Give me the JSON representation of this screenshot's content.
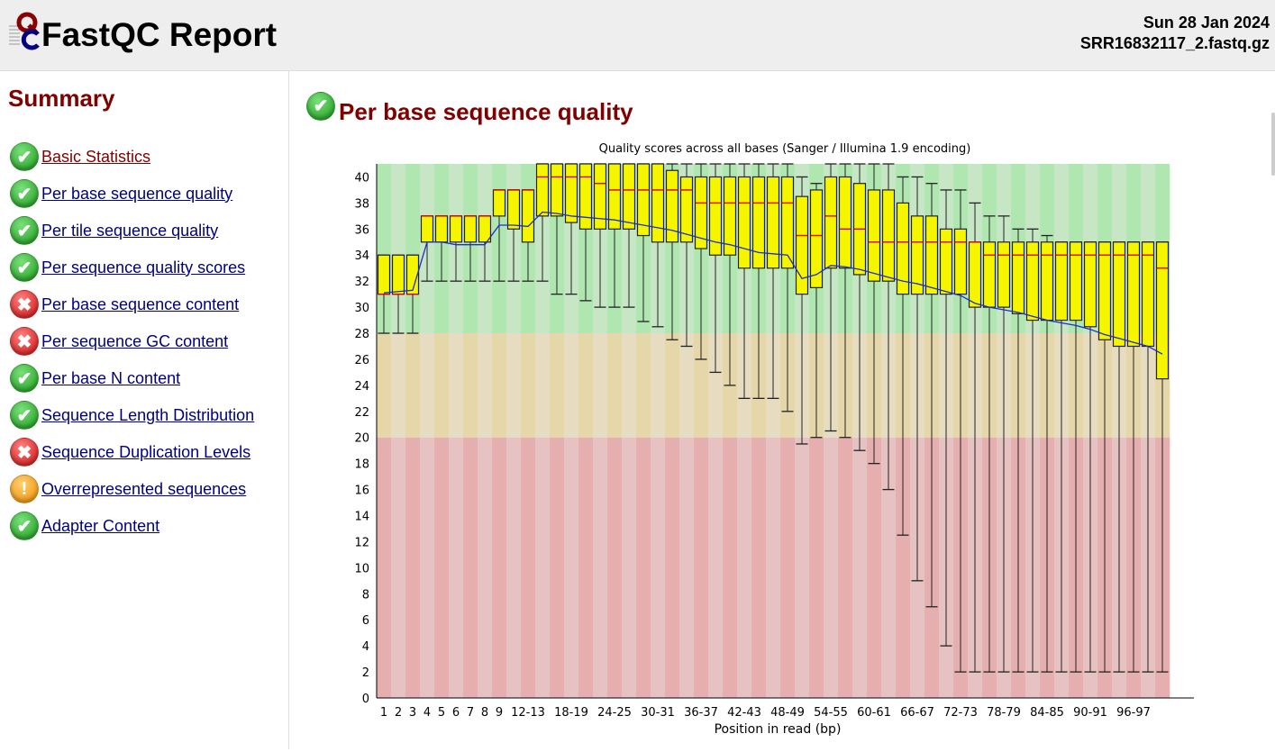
{
  "header": {
    "title": "FastQC Report",
    "date": "Sun 28 Jan 2024",
    "filename": "SRR16832117_2.fastq.gz",
    "logo_text": "QC"
  },
  "sidebar": {
    "title": "Summary",
    "items": [
      {
        "label": "Basic Statistics",
        "status": "pass",
        "visited": true
      },
      {
        "label": "Per base sequence quality",
        "status": "pass"
      },
      {
        "label": "Per tile sequence quality",
        "status": "pass"
      },
      {
        "label": "Per sequence quality scores",
        "status": "pass"
      },
      {
        "label": "Per base sequence content",
        "status": "fail"
      },
      {
        "label": "Per sequence GC content",
        "status": "fail"
      },
      {
        "label": "Per base N content",
        "status": "pass"
      },
      {
        "label": "Sequence Length Distribution",
        "status": "pass"
      },
      {
        "label": "Sequence Duplication Levels",
        "status": "fail"
      },
      {
        "label": "Overrepresented sequences",
        "status": "warn"
      },
      {
        "label": "Adapter Content",
        "status": "pass"
      }
    ]
  },
  "main": {
    "title": "Per base sequence quality",
    "status": "pass"
  },
  "colors": {
    "box": "#f5f500",
    "median": "#e00000",
    "mean": "#1e2cd6",
    "good": "#b0e6b0",
    "ok": "#e6d7a8",
    "poor": "#e6afaf"
  },
  "chart_data": {
    "type": "boxplot",
    "title": "Quality scores across all bases (Sanger / Illumina 1.9 encoding)",
    "xlabel": "Position in read (bp)",
    "ylabel": "",
    "ylim": [
      0,
      41
    ],
    "yticks": [
      0,
      2,
      4,
      6,
      8,
      10,
      12,
      14,
      16,
      18,
      20,
      22,
      24,
      26,
      28,
      30,
      32,
      34,
      36,
      38,
      40
    ],
    "zones": [
      {
        "from": 28,
        "to": 41,
        "label": "good"
      },
      {
        "from": 20,
        "to": 28,
        "label": "ok"
      },
      {
        "from": 0,
        "to": 20,
        "label": "poor"
      }
    ],
    "categories": [
      "1",
      "2",
      "3",
      "4",
      "5",
      "6",
      "7",
      "8",
      "9",
      "10-11",
      "12-13",
      "14-15",
      "16-17",
      "18-19",
      "20-21",
      "22-23",
      "24-25",
      "26-27",
      "28-29",
      "30-31",
      "32-33",
      "34-35",
      "36-37",
      "38-39",
      "40-41",
      "42-43",
      "44-45",
      "46-47",
      "48-49",
      "50-51",
      "52-53",
      "54-55",
      "56-57",
      "58-59",
      "60-61",
      "62-63",
      "64-65",
      "66-67",
      "68-69",
      "70-71",
      "72-73",
      "74-75",
      "76-77",
      "78-79",
      "80-81",
      "82-83",
      "84-85",
      "86-87",
      "88-89",
      "90-91",
      "92-93",
      "94-95",
      "96-97",
      "98-99",
      "100"
    ],
    "shown_tick_labels": [
      "1",
      "2",
      "3",
      "4",
      "5",
      "6",
      "7",
      "8",
      "9",
      "12-13",
      "18-19",
      "24-25",
      "30-31",
      "36-37",
      "42-43",
      "48-49",
      "54-55",
      "60-61",
      "66-67",
      "72-73",
      "78-79",
      "84-85",
      "90-91",
      "96-97"
    ],
    "boxes_columns": [
      "lower_whisker",
      "q1",
      "median",
      "q3",
      "upper_whisker",
      "mean"
    ],
    "boxes": [
      [
        28,
        31,
        31,
        34,
        34,
        31.1
      ],
      [
        28,
        31,
        31,
        34,
        34,
        31.2
      ],
      [
        28,
        31,
        31,
        34,
        34,
        31.3
      ],
      [
        32,
        35,
        37,
        37,
        37,
        35.0
      ],
      [
        32,
        35,
        37,
        37,
        37,
        35.0
      ],
      [
        32,
        35,
        37,
        37,
        37,
        34.8
      ],
      [
        32,
        35,
        37,
        37,
        37,
        34.8
      ],
      [
        32,
        35,
        37,
        37,
        37,
        34.8
      ],
      [
        32,
        37,
        39,
        39,
        39,
        36.3
      ],
      [
        32,
        36,
        39,
        39,
        39,
        36.3
      ],
      [
        32,
        35,
        39,
        39,
        39,
        36.2
      ],
      [
        32,
        37,
        40,
        41,
        41,
        37.3
      ],
      [
        31,
        37,
        40,
        41,
        41,
        37.2
      ],
      [
        31,
        36.5,
        40,
        41,
        41,
        37.0
      ],
      [
        30.5,
        36,
        40,
        41,
        41,
        36.9
      ],
      [
        30,
        36,
        39.5,
        41,
        41,
        36.8
      ],
      [
        30,
        36,
        39,
        41,
        41,
        36.7
      ],
      [
        30,
        36,
        39,
        41,
        41,
        36.5
      ],
      [
        28.9,
        35.5,
        39,
        41,
        41,
        36.3
      ],
      [
        28.5,
        35,
        39,
        41,
        41,
        36.1
      ],
      [
        27.5,
        35,
        39,
        40.5,
        41,
        35.9
      ],
      [
        27,
        35,
        39,
        40,
        41,
        35.6
      ],
      [
        26,
        34.5,
        38,
        40,
        41,
        35.3
      ],
      [
        25,
        34,
        38,
        40,
        41,
        35.0
      ],
      [
        24,
        34,
        38,
        40,
        41,
        34.8
      ],
      [
        23,
        33,
        38,
        40,
        41,
        34.5
      ],
      [
        23,
        33,
        38,
        40,
        41,
        34.2
      ],
      [
        23,
        33,
        38,
        40,
        41,
        34.1
      ],
      [
        22,
        33,
        38,
        40,
        41,
        34.0
      ],
      [
        19.5,
        31,
        35.5,
        38.5,
        40,
        32.2
      ],
      [
        20,
        31.5,
        35.5,
        39,
        39.5,
        32.5
      ],
      [
        20.5,
        33,
        37,
        40,
        41,
        33.2
      ],
      [
        20,
        33,
        36,
        40,
        41,
        33.1
      ],
      [
        19,
        32.5,
        36,
        39.5,
        41,
        32.9
      ],
      [
        18,
        32,
        35,
        39,
        41,
        32.6
      ],
      [
        16,
        32,
        35,
        39,
        41,
        32.3
      ],
      [
        12.5,
        31,
        35,
        38,
        40,
        32.0
      ],
      [
        9,
        31,
        35,
        37,
        40,
        31.8
      ],
      [
        7,
        31,
        35,
        37,
        39.5,
        31.5
      ],
      [
        4,
        31,
        35,
        36,
        39,
        31.2
      ],
      [
        2,
        31,
        35,
        36,
        39,
        30.9
      ],
      [
        2,
        30,
        35,
        35,
        38,
        30.3
      ],
      [
        2,
        30,
        34,
        35,
        37,
        30.0
      ],
      [
        2,
        30,
        34,
        35,
        37,
        29.8
      ],
      [
        2,
        29.5,
        34,
        35,
        36,
        29.6
      ],
      [
        2,
        29,
        34,
        35,
        36,
        29.3
      ],
      [
        2,
        29,
        34,
        35,
        35.5,
        29.0
      ],
      [
        2,
        29,
        34,
        35,
        35,
        28.8
      ],
      [
        2,
        29,
        34,
        35,
        35,
        28.6
      ],
      [
        2,
        28.5,
        34,
        35,
        35,
        28.3
      ],
      [
        2,
        27.5,
        34,
        35,
        35,
        27.9
      ],
      [
        2,
        27,
        34,
        35,
        35,
        27.6
      ],
      [
        2,
        27,
        34,
        35,
        35,
        27.3
      ],
      [
        2,
        27,
        34,
        35,
        35,
        27.0
      ],
      [
        2,
        24.5,
        33,
        35,
        35,
        26.4
      ]
    ]
  }
}
